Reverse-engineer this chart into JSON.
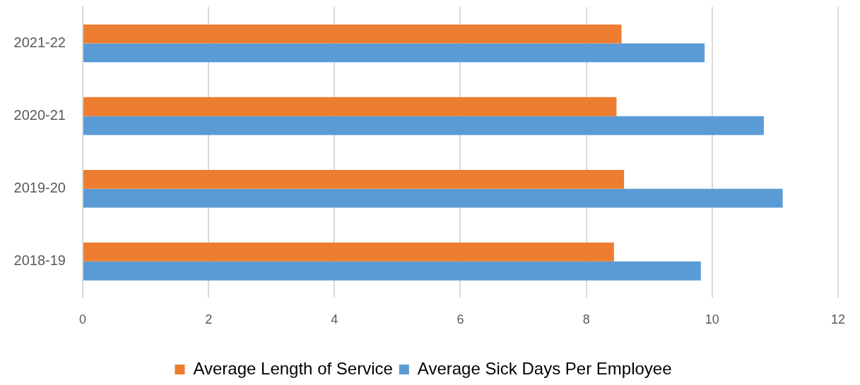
{
  "chart_data": {
    "type": "bar",
    "orientation": "horizontal",
    "categories": [
      "2021-22",
      "2020-21",
      "2019-20",
      "2018-19"
    ],
    "series": [
      {
        "name": "Average Length of Service",
        "color": "#ed7d31",
        "values": [
          8.56,
          8.48,
          8.6,
          8.44
        ]
      },
      {
        "name": "Average Sick Days Per Employee",
        "color": "#5b9bd5",
        "values": [
          9.88,
          10.82,
          11.12,
          9.82
        ]
      }
    ],
    "xlim": [
      0,
      12
    ],
    "xticks": [
      0,
      2,
      4,
      6,
      8,
      10,
      12
    ],
    "grid": "x",
    "legend": "bottom"
  }
}
